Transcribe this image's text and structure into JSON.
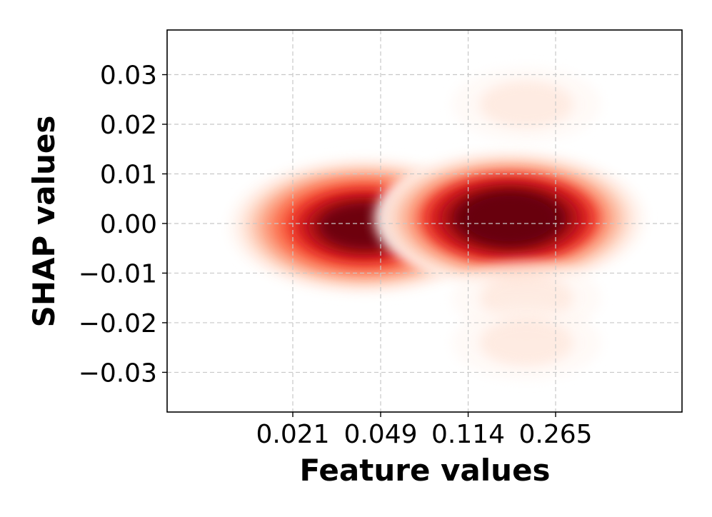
{
  "chart_data": {
    "type": "heatmap",
    "subtype": "kde-density",
    "title": "",
    "xlabel": "Feature values",
    "ylabel": "SHAP values",
    "x_scale": "log",
    "xticks": [
      0.021,
      0.049,
      0.114,
      0.265
    ],
    "xtick_labels": [
      "0.021",
      "0.049",
      "0.114",
      "0.265"
    ],
    "ylim": [
      -0.038,
      0.039
    ],
    "yticks": [
      0.03,
      0.02,
      0.01,
      0.0,
      -0.01,
      -0.02,
      -0.03
    ],
    "ytick_labels": [
      "0.03",
      "0.02",
      "0.01",
      "0.00",
      "−0.01",
      "−0.02",
      "−0.03"
    ],
    "grid": true,
    "colormap": "Reds",
    "colors": [
      "#fff5f0",
      "#fee0d2",
      "#fcbba1",
      "#fc9272",
      "#fb6a4a",
      "#ef3b2c",
      "#cb181d",
      "#a50f15",
      "#67000d"
    ],
    "density_clusters": [
      {
        "x": 0.042,
        "y": -0.0005,
        "weight": 1.0
      },
      {
        "x": 0.17,
        "y": 0.001,
        "weight": 1.35
      },
      {
        "x": 0.2,
        "y": 0.024,
        "weight": 0.12
      },
      {
        "x": 0.2,
        "y": -0.015,
        "weight": 0.12
      },
      {
        "x": 0.2,
        "y": -0.024,
        "weight": 0.08
      }
    ]
  }
}
